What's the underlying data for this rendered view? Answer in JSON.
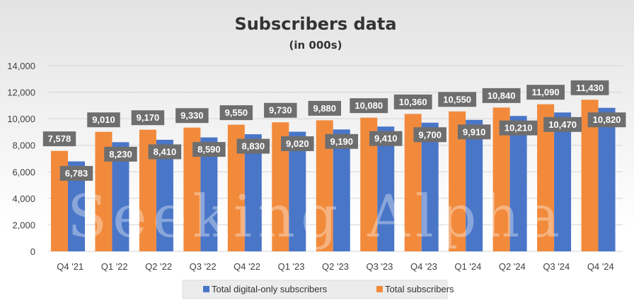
{
  "watermark": "Seeking Alpha",
  "colors": {
    "orange": "#f28a3c",
    "blue": "#4a76c8",
    "label_bg": "#6e6e6e",
    "grid": "#d4d4d4"
  },
  "chart_data": {
    "type": "bar",
    "title": "Subscribers data",
    "subtitle": "(in 000s)",
    "categories": [
      "Q4 '21",
      "Q1 '22",
      "Q2 '22",
      "Q3 '22",
      "Q4 '22",
      "Q1 '23",
      "Q2 '23",
      "Q3 '23",
      "Q4 '23",
      "Q1 '24",
      "Q2 '24",
      "Q3 '24",
      "Q4 '24"
    ],
    "series": [
      {
        "name": "Total subscribers",
        "color": "#f28a3c",
        "values": [
          7578,
          9010,
          9170,
          9330,
          9550,
          9730,
          9880,
          10080,
          10360,
          10550,
          10840,
          11090,
          11430
        ],
        "labels": [
          "7,578",
          "9,010",
          "9,170",
          "9,330",
          "9,550",
          "9,730",
          "9,880",
          "10,080",
          "10,360",
          "10,550",
          "10,840",
          "11,090",
          "11,430"
        ]
      },
      {
        "name": "Total digital-only subscribers",
        "color": "#4a76c8",
        "values": [
          6783,
          8230,
          8410,
          8590,
          8830,
          9020,
          9190,
          9410,
          9700,
          9910,
          10210,
          10470,
          10820
        ],
        "labels": [
          "6,783",
          "8,230",
          "8,410",
          "8,590",
          "8,830",
          "9,020",
          "9,190",
          "9,410",
          "9,700",
          "9,910",
          "10,210",
          "10,470",
          "10,820"
        ]
      }
    ],
    "ylim": [
      0,
      14000
    ],
    "yticks": [
      0,
      2000,
      4000,
      6000,
      8000,
      10000,
      12000,
      14000
    ],
    "ytick_labels": [
      "0",
      "2,000",
      "4,000",
      "6,000",
      "8,000",
      "10,000",
      "12,000",
      "14,000"
    ],
    "grid": true,
    "legend": {
      "placement": "bottom",
      "entries": [
        {
          "name": "Total digital-only subscribers",
          "color": "#4a76c8"
        },
        {
          "name": "Total subscribers",
          "color": "#f28a3c"
        }
      ]
    }
  }
}
